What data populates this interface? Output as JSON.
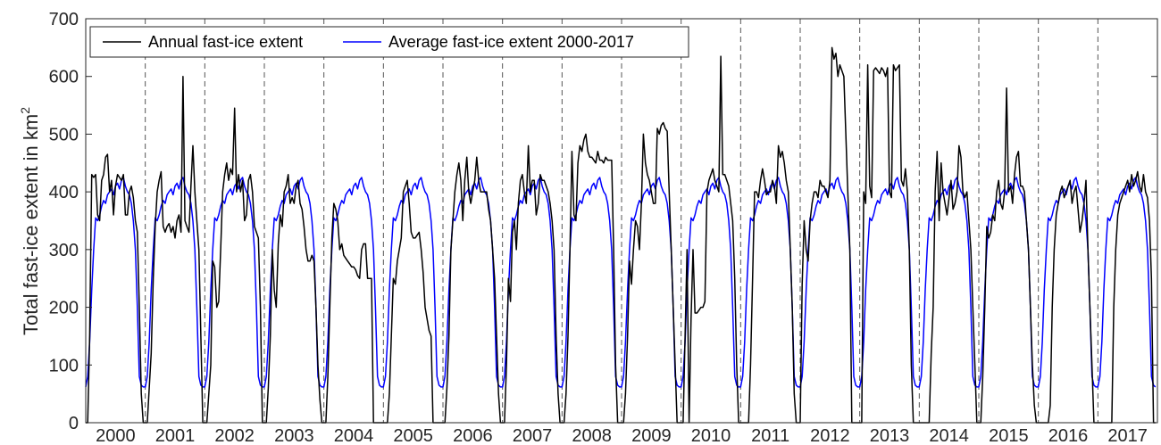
{
  "chart_data": {
    "type": "line",
    "title": "",
    "xlabel": "",
    "ylabel": "Total fast-ice extent in km",
    "ylabel_superscript": "2",
    "ylim": [
      0,
      700
    ],
    "yticks": [
      0,
      100,
      200,
      300,
      400,
      500,
      600,
      700
    ],
    "years": [
      "2000",
      "2001",
      "2002",
      "2003",
      "2004",
      "2005",
      "2006",
      "2007",
      "2008",
      "2009",
      "2010",
      "2011",
      "2012",
      "2013",
      "2014",
      "2015",
      "2016",
      "2017"
    ],
    "grid": false,
    "year_separators": "dashed vertical lines",
    "legend": {
      "position": "top-left",
      "entries": [
        {
          "label": "Annual fast-ice extent",
          "color": "#000000"
        },
        {
          "label": "Average fast-ice extent 2000-2017",
          "color": "#0000ff"
        }
      ]
    },
    "series": [
      {
        "name": "Average fast-ice extent 2000-2017",
        "color": "#0000ff",
        "per_year_profile": [
          62,
          80,
          140,
          230,
          300,
          355,
          350,
          360,
          375,
          385,
          380,
          395,
          400,
          405,
          395,
          410,
          415,
          405,
          420,
          425,
          410,
          400,
          395,
          380,
          350,
          300,
          200,
          80,
          65,
          62
        ]
      },
      {
        "name": "Annual fast-ice extent",
        "color": "#000000",
        "values_by_year": [
          [
            0,
            0,
            150,
            430,
            425,
            430,
            360,
            350,
            420,
            430,
            460,
            465,
            400,
            420,
            360,
            410,
            430,
            425,
            420,
            430,
            360,
            360,
            400,
            410,
            390,
            350,
            330,
            200,
            50,
            0
          ],
          [
            0,
            0,
            60,
            120,
            250,
            340,
            400,
            420,
            435,
            340,
            330,
            340,
            345,
            330,
            340,
            320,
            350,
            360,
            330,
            600,
            350,
            340,
            330,
            410,
            480,
            400,
            350,
            300,
            150,
            0
          ],
          [
            0,
            0,
            50,
            100,
            280,
            270,
            200,
            210,
            300,
            400,
            430,
            450,
            420,
            440,
            430,
            545,
            400,
            430,
            400,
            420,
            350,
            360,
            420,
            430,
            400,
            340,
            330,
            320,
            200,
            0
          ],
          [
            0,
            0,
            60,
            150,
            300,
            230,
            200,
            310,
            360,
            340,
            400,
            410,
            430,
            380,
            390,
            380,
            410,
            420,
            380,
            370,
            340,
            300,
            280,
            280,
            290,
            280,
            200,
            100,
            40,
            0
          ],
          [
            0,
            0,
            80,
            200,
            320,
            380,
            370,
            350,
            300,
            310,
            290,
            285,
            280,
            275,
            270,
            270,
            265,
            255,
            250,
            300,
            310,
            310,
            250,
            250,
            250,
            0,
            0,
            0,
            0,
            0
          ],
          [
            0,
            0,
            0,
            50,
            150,
            250,
            240,
            280,
            300,
            320,
            400,
            410,
            420,
            380,
            330,
            320,
            320,
            325,
            330,
            300,
            260,
            200,
            180,
            160,
            150,
            0,
            0,
            0,
            0,
            0
          ],
          [
            0,
            0,
            60,
            150,
            300,
            350,
            400,
            430,
            450,
            420,
            350,
            420,
            460,
            400,
            380,
            400,
            420,
            460,
            420,
            400,
            400,
            400,
            400,
            370,
            350,
            300,
            250,
            150,
            50,
            0
          ],
          [
            0,
            0,
            100,
            250,
            210,
            330,
            350,
            300,
            380,
            420,
            430,
            400,
            380,
            480,
            400,
            420,
            420,
            360,
            380,
            430,
            420,
            420,
            410,
            400,
            380,
            350,
            300,
            150,
            50,
            0
          ],
          [
            0,
            0,
            50,
            150,
            300,
            470,
            360,
            350,
            450,
            480,
            470,
            490,
            500,
            470,
            460,
            460,
            455,
            450,
            470,
            455,
            455,
            450,
            460,
            455,
            455,
            455,
            300,
            100,
            0,
            0
          ],
          [
            0,
            0,
            50,
            150,
            280,
            240,
            300,
            350,
            340,
            300,
            380,
            500,
            450,
            430,
            420,
            400,
            380,
            380,
            510,
            500,
            515,
            520,
            510,
            505,
            400,
            300,
            200,
            100,
            0,
            0
          ],
          [
            0,
            0,
            150,
            300,
            0,
            180,
            300,
            190,
            190,
            195,
            200,
            200,
            210,
            400,
            420,
            430,
            440,
            420,
            410,
            400,
            635,
            430,
            430,
            420,
            410,
            380,
            350,
            250,
            100,
            0
          ],
          [
            0,
            0,
            0,
            0,
            0,
            100,
            250,
            400,
            400,
            390,
            420,
            440,
            420,
            395,
            400,
            400,
            420,
            410,
            380,
            480,
            460,
            470,
            450,
            420,
            400,
            300,
            200,
            50,
            0,
            0
          ],
          [
            0,
            240,
            350,
            300,
            280,
            350,
            380,
            400,
            400,
            390,
            420,
            410,
            410,
            400,
            390,
            420,
            650,
            630,
            640,
            600,
            620,
            610,
            600,
            500,
            400,
            300,
            0,
            0,
            0,
            0
          ],
          [
            0,
            0,
            400,
            380,
            620,
            410,
            390,
            610,
            615,
            610,
            605,
            615,
            610,
            600,
            615,
            400,
            390,
            620,
            610,
            615,
            620,
            420,
            410,
            440,
            400,
            300,
            100,
            0,
            0,
            0
          ],
          [
            0,
            0,
            0,
            0,
            0,
            0,
            120,
            200,
            400,
            470,
            350,
            450,
            400,
            380,
            360,
            390,
            420,
            370,
            380,
            400,
            480,
            460,
            400,
            390,
            400,
            350,
            300,
            200,
            100,
            0
          ],
          [
            0,
            0,
            80,
            200,
            340,
            320,
            330,
            360,
            350,
            400,
            420,
            380,
            370,
            400,
            580,
            400,
            410,
            380,
            430,
            460,
            470,
            410,
            410,
            400,
            350,
            300,
            200,
            100,
            30,
            0
          ],
          [
            0,
            0,
            0,
            0,
            0,
            0,
            30,
            200,
            300,
            360,
            380,
            400,
            410,
            390,
            400,
            410,
            420,
            380,
            400,
            410,
            370,
            330,
            350,
            380,
            420,
            300,
            200,
            100,
            0,
            0
          ],
          [
            0,
            0,
            0,
            0,
            0,
            0,
            0,
            0,
            200,
            300,
            360,
            380,
            390,
            400,
            410,
            420,
            400,
            430,
            410,
            420,
            435,
            410,
            400,
            430,
            400,
            390,
            350,
            250,
            0,
            0
          ]
        ]
      }
    ]
  }
}
